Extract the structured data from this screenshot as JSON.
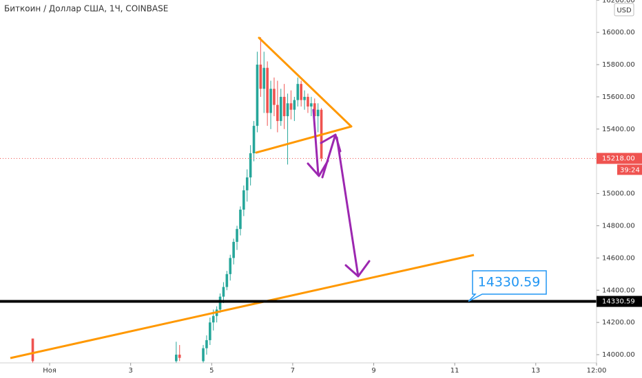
{
  "chart_data": {
    "type": "candlestick",
    "title": "Биткоин / Доллар США, 1Ч, COINBASE",
    "currency": "USD",
    "colors": {
      "up": "#26a69a",
      "down": "#ef5350"
    },
    "xlim": [
      -29.4,
      324
    ],
    "xticks": [
      {
        "value": 0,
        "label": "Ноя"
      },
      {
        "value": 48,
        "label": "3"
      },
      {
        "value": 96,
        "label": "5"
      },
      {
        "value": 144,
        "label": "7"
      },
      {
        "value": 192,
        "label": "9"
      },
      {
        "value": 240,
        "label": "11"
      },
      {
        "value": 288,
        "label": "13"
      },
      {
        "value": 324,
        "label": "12:00"
      }
    ],
    "ylim": [
      13949,
      16201
    ],
    "yticks": [
      {
        "value": 14000,
        "label": "14000.00"
      },
      {
        "value": 14200,
        "label": "14200.00"
      },
      {
        "value": 14400,
        "label": "14400.00"
      },
      {
        "value": 14600,
        "label": "14600.00"
      },
      {
        "value": 14800,
        "label": "14800.00"
      },
      {
        "value": 15000,
        "label": "15000.00"
      },
      {
        "value": 15200,
        "label": "15200.00"
      },
      {
        "value": 15400,
        "label": "15400.00"
      },
      {
        "value": 15600,
        "label": "15600.00"
      },
      {
        "value": 15800,
        "label": "15800.00"
      },
      {
        "value": 16000,
        "label": "16000.00"
      },
      {
        "value": 16200,
        "label": "16200.00"
      }
    ],
    "candles": {
      "x": [
        -10,
        75,
        77,
        91,
        93,
        95,
        97,
        99,
        101,
        103,
        105,
        107,
        109,
        111,
        113,
        115,
        117,
        119,
        121,
        123,
        125,
        127,
        129,
        131,
        133,
        135,
        137,
        139,
        141,
        143,
        145,
        147,
        149,
        151,
        153,
        155,
        157,
        159,
        161
      ],
      "open": [
        14100,
        13960,
        14000,
        13960,
        14040,
        14090,
        14200,
        14240,
        14280,
        14360,
        14420,
        14500,
        14600,
        14700,
        14780,
        14900,
        15020,
        15100,
        15250,
        15420,
        15800,
        15650,
        15780,
        15500,
        15650,
        15550,
        15450,
        15600,
        15480,
        15560,
        15520,
        15580,
        15680,
        15580,
        15600,
        15540,
        15560,
        15480,
        15520
      ],
      "high": [
        14100,
        14080,
        14060,
        14060,
        14120,
        14230,
        14280,
        14300,
        14380,
        14450,
        14520,
        14620,
        14720,
        14800,
        14920,
        15050,
        15150,
        15300,
        15450,
        15880,
        15970,
        15880,
        15820,
        15700,
        15720,
        15700,
        15650,
        15680,
        15620,
        15640,
        15600,
        15720,
        15700,
        15640,
        15620,
        15600,
        15590,
        15560,
        15530
      ],
      "low": [
        13950,
        13950,
        13960,
        13950,
        14000,
        14060,
        14150,
        14200,
        14260,
        14320,
        14400,
        14460,
        14560,
        14650,
        14740,
        14860,
        14950,
        15050,
        15200,
        15380,
        15600,
        15500,
        15420,
        15400,
        15480,
        15380,
        15420,
        15400,
        15180,
        15460,
        15450,
        15540,
        15540,
        15520,
        15500,
        15480,
        15430,
        15380,
        15200
      ],
      "close": [
        13960,
        14000,
        13980,
        14040,
        14090,
        14200,
        14240,
        14280,
        14360,
        14420,
        14500,
        14600,
        14700,
        14780,
        14900,
        15020,
        15100,
        15250,
        15420,
        15800,
        15650,
        15780,
        15500,
        15650,
        15550,
        15450,
        15600,
        15480,
        15560,
        15520,
        15580,
        15680,
        15580,
        15600,
        15540,
        15560,
        15480,
        15520,
        15218
      ]
    },
    "last_price": {
      "value": 15218,
      "label": "15218.00",
      "countdown": "39:24"
    },
    "horizontal_line": 14330.59
  }
}
